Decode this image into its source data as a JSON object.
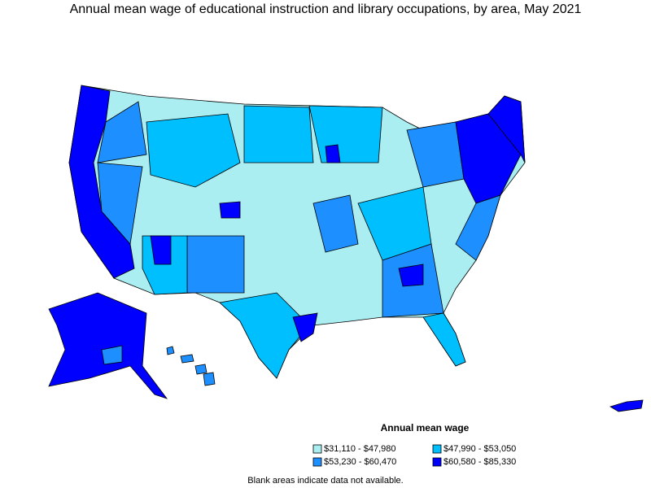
{
  "title": "Annual mean wage of educational instruction and library occupations, by area, May 2021",
  "legend": {
    "title": "Annual mean wage",
    "items": [
      {
        "label": "$31,110 - $47,980",
        "color": "#aaeef2"
      },
      {
        "label": "$47,990 - $53,050",
        "color": "#00bfff"
      },
      {
        "label": "$53,230 - $60,470",
        "color": "#1e8fff"
      },
      {
        "label": "$60,580 - $85,330",
        "color": "#0000ff"
      }
    ]
  },
  "footnote": "Blank areas indicate data not available."
}
